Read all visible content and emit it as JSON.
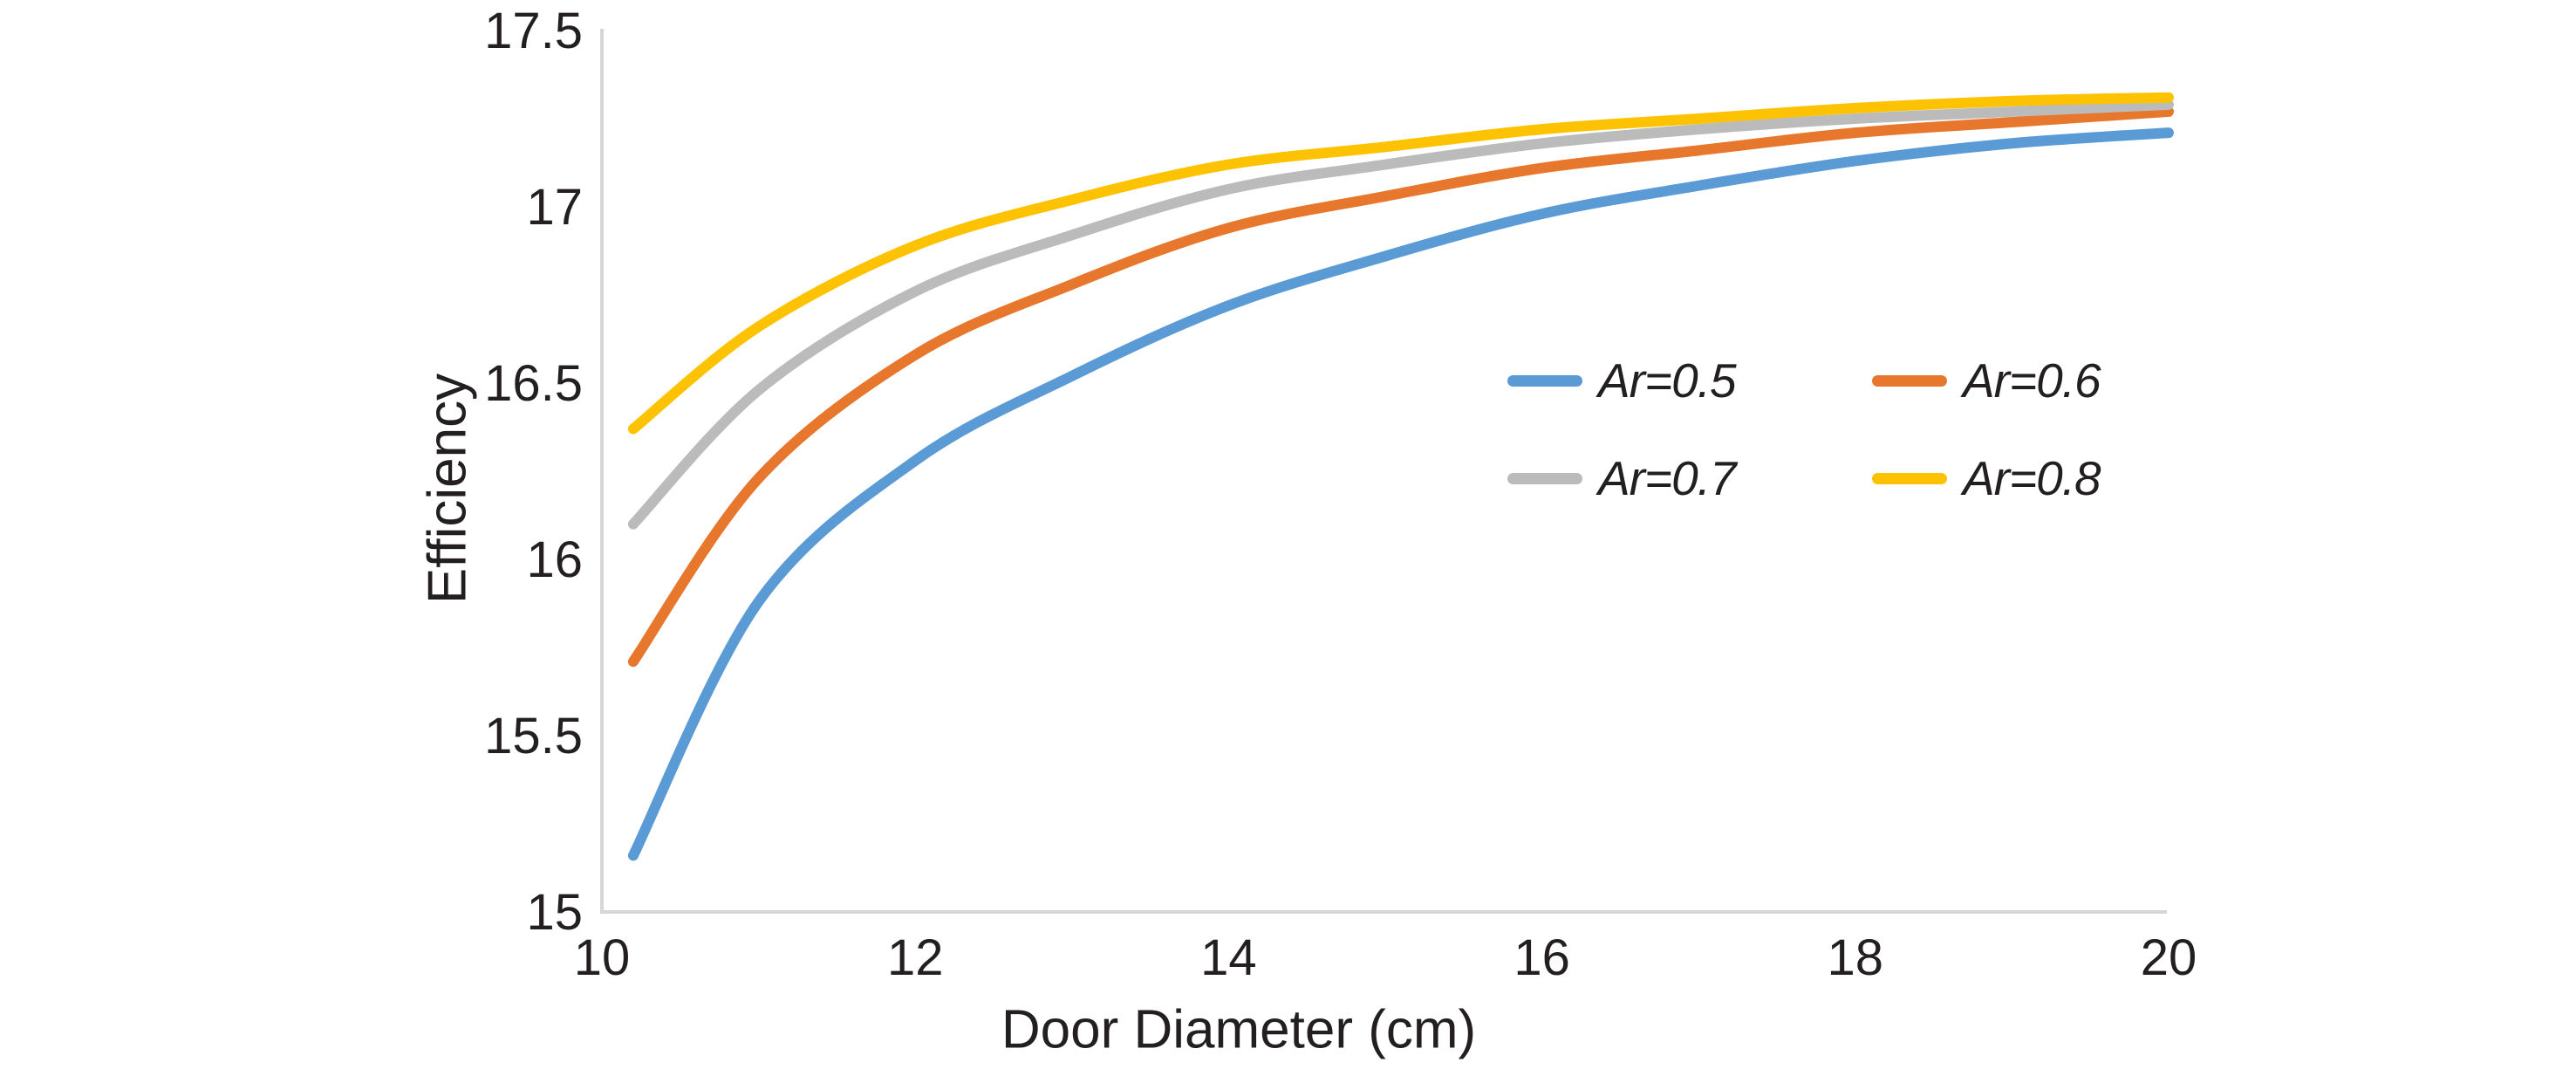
{
  "chart_data": {
    "type": "line",
    "title": "",
    "xlabel": "Door Diameter (cm)",
    "ylabel": "Efficiency",
    "xlim": [
      10,
      20
    ],
    "ylim": [
      15,
      17.5
    ],
    "grid": false,
    "legend_position": "inside-upper-right, 2x2 grid",
    "x_ticks": {
      "values": [
        10,
        12,
        14,
        16,
        18,
        20
      ],
      "labels": [
        "10",
        "12",
        "14",
        "16",
        "18",
        "20"
      ]
    },
    "y_ticks": {
      "values": [
        15,
        15.5,
        16,
        16.5,
        17,
        17.5
      ],
      "labels": [
        "15",
        "15.5",
        "16",
        "16.5",
        "17",
        "17.5"
      ]
    },
    "x": [
      10.2,
      11,
      12,
      13,
      14,
      15,
      16,
      17,
      18,
      19,
      20
    ],
    "series": [
      {
        "name": "Ar=0.5",
        "color": "#5B9BD5",
        "values": [
          15.16,
          15.88,
          16.28,
          16.52,
          16.72,
          16.86,
          16.98,
          17.06,
          17.13,
          17.18,
          17.21
        ]
      },
      {
        "name": "Ar=0.6",
        "color": "#E8772E",
        "values": [
          15.71,
          16.23,
          16.58,
          16.78,
          16.94,
          17.03,
          17.11,
          17.16,
          17.21,
          17.24,
          17.27
        ]
      },
      {
        "name": "Ar=0.7",
        "color": "#BBBBBB",
        "values": [
          16.1,
          16.48,
          16.76,
          16.92,
          17.05,
          17.12,
          17.18,
          17.22,
          17.25,
          17.27,
          17.29
        ]
      },
      {
        "name": "Ar=0.8",
        "color": "#FDC303",
        "values": [
          16.37,
          16.66,
          16.89,
          17.02,
          17.12,
          17.17,
          17.22,
          17.25,
          17.28,
          17.3,
          17.31
        ]
      }
    ]
  },
  "colors": {
    "background": "#FFFFFF",
    "axis_line": "#D6D6D6",
    "text": "#231F20"
  }
}
